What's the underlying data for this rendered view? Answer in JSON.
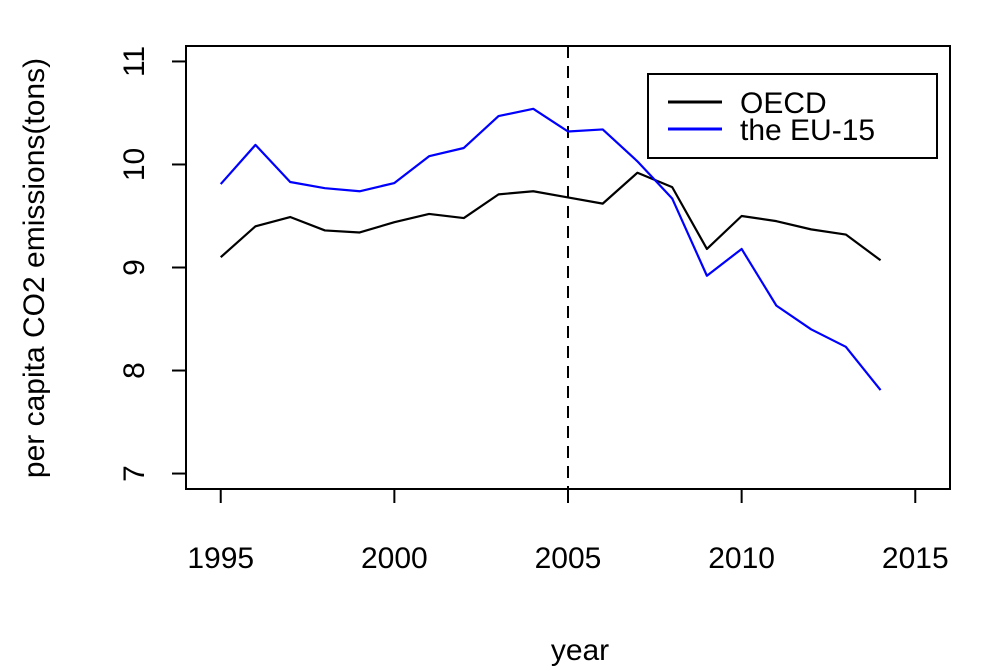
{
  "chart_data": {
    "type": "line",
    "title": "",
    "xlabel": "year",
    "ylabel": "per capita CO2 emissions(tons)",
    "xlim": [
      1994,
      2016
    ],
    "ylim": [
      6.85,
      11.15
    ],
    "x_ticks": [
      1995,
      2000,
      2005,
      2010,
      2015
    ],
    "x_tick_labels": [
      "1995",
      "2000",
      "2005",
      "2010",
      "2015"
    ],
    "y_ticks": [
      7,
      8,
      9,
      10,
      11
    ],
    "y_tick_labels": [
      "7",
      "8",
      "9",
      "10",
      "11"
    ],
    "grid": false,
    "legend_position": "top-right",
    "reference_line": {
      "x": 2005,
      "style": "dashed",
      "color": "#000000"
    },
    "x": [
      1995,
      1996,
      1997,
      1998,
      1999,
      2000,
      2001,
      2002,
      2003,
      2004,
      2005,
      2006,
      2007,
      2008,
      2009,
      2010,
      2011,
      2012,
      2013,
      2014
    ],
    "series": [
      {
        "name": "OECD",
        "color": "#000000",
        "values": [
          9.1,
          9.4,
          9.49,
          9.36,
          9.34,
          9.44,
          9.52,
          9.48,
          9.71,
          9.74,
          9.68,
          9.62,
          9.92,
          9.78,
          9.18,
          9.5,
          9.45,
          9.37,
          9.32,
          9.07
        ]
      },
      {
        "name": "the EU-15",
        "color": "#0000ff",
        "values": [
          9.81,
          10.19,
          9.83,
          9.77,
          9.74,
          9.82,
          10.08,
          10.16,
          10.47,
          10.54,
          10.32,
          10.34,
          10.03,
          9.67,
          8.92,
          9.18,
          8.63,
          8.4,
          8.23,
          7.81
        ]
      }
    ]
  }
}
